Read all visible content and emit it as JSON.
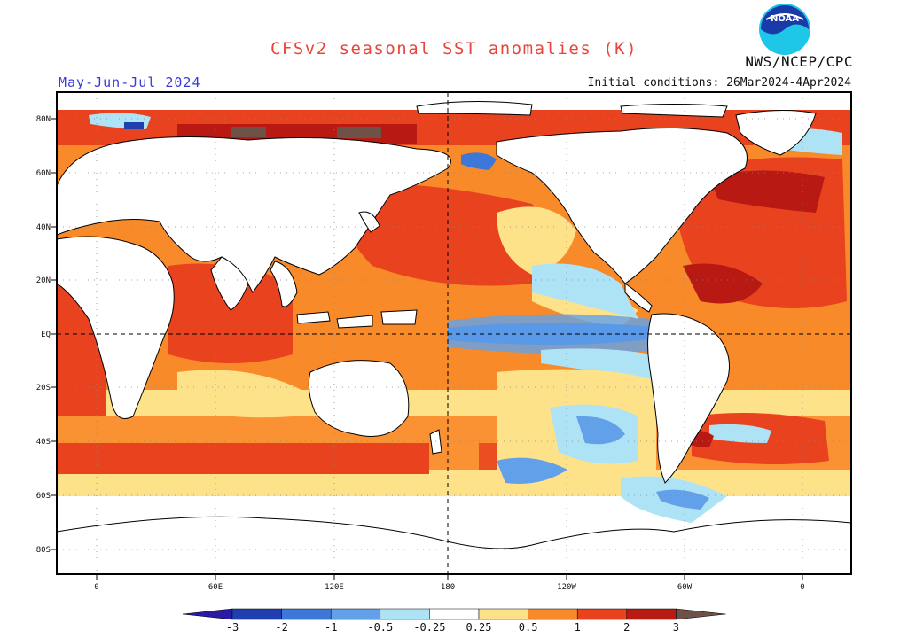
{
  "header": {
    "title": "CFSv2 seasonal SST anomalies (K)",
    "period": "May-Jun-Jul 2024",
    "agency": "NWS/NCEP/CPC",
    "initial_conditions": "Initial conditions: 26Mar2024-4Apr2024",
    "logo_text": "NOAA"
  },
  "map": {
    "lat_labels": [
      "80N",
      "60N",
      "40N",
      "20N",
      "EQ",
      "20S",
      "40S",
      "60S",
      "80S"
    ],
    "lon_labels": [
      "0",
      "60E",
      "120E",
      "180",
      "120W",
      "60W",
      "0"
    ]
  },
  "colorbar": {
    "labels": [
      "-3",
      "-2",
      "-1",
      "-0.5",
      "-0.25",
      "0.25",
      "0.5",
      "1",
      "2",
      "3"
    ],
    "colors": [
      "#1f3fb0",
      "#3d78d9",
      "#62a1ea",
      "#aee3f6",
      "#ffffff",
      "#fde28a",
      "#f98a2a",
      "#e8421f",
      "#b81a13",
      "#6e5247"
    ]
  },
  "colors": {
    "warm_light": "#fde28a",
    "warm_mid": "#f98a2a",
    "warm_strong": "#e8421f",
    "warm_extreme": "#b81a13",
    "cool_light": "#aee3f6",
    "cool_mid": "#62a1ea",
    "cool_strong": "#3d78d9",
    "title_red": "#e8463a",
    "period_blue": "#3a3ad8"
  }
}
